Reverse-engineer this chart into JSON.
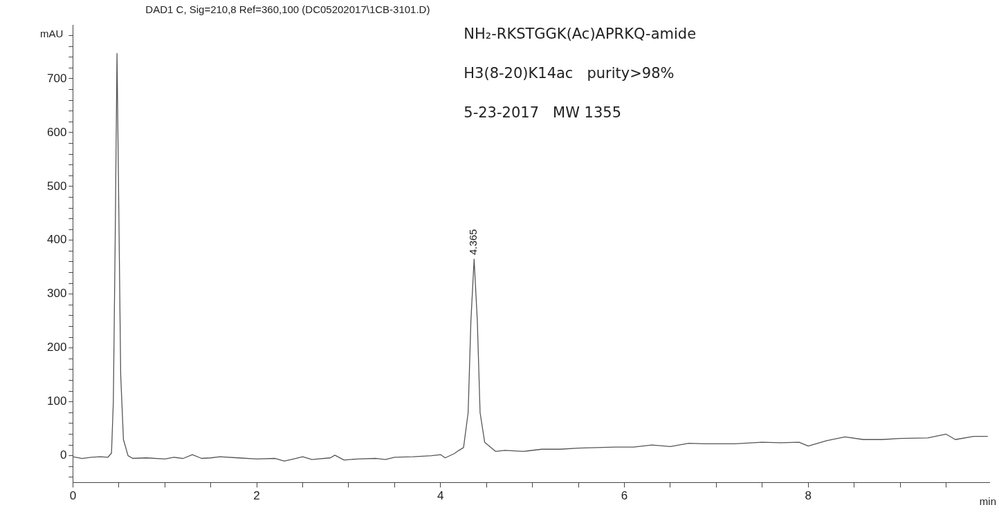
{
  "chart_data": {
    "type": "line",
    "title": "DAD1 C, Sig=210,8 Ref=360,100 (DC05202017\\1CB-3101.D)",
    "xlabel": "min",
    "ylabel": "mAU",
    "x": [
      0,
      0.1,
      0.2,
      0.3,
      0.38,
      0.42,
      0.44,
      0.46,
      0.48,
      0.5,
      0.52,
      0.55,
      0.6,
      0.65,
      0.8,
      1.0,
      1.1,
      1.2,
      1.3,
      1.4,
      1.5,
      1.6,
      1.8,
      2.0,
      2.2,
      2.3,
      2.4,
      2.5,
      2.6,
      2.8,
      2.85,
      2.95,
      3.1,
      3.3,
      3.4,
      3.5,
      3.7,
      3.9,
      4.0,
      4.05,
      4.15,
      4.2,
      4.25,
      4.3,
      4.33,
      4.365,
      4.4,
      4.43,
      4.48,
      4.55,
      4.6,
      4.7,
      4.9,
      5.1,
      5.3,
      5.5,
      5.7,
      5.9,
      6.1,
      6.3,
      6.5,
      6.7,
      6.9,
      7.2,
      7.5,
      7.7,
      7.9,
      8.0,
      8.2,
      8.4,
      8.6,
      8.8,
      9.0,
      9.3,
      9.5,
      9.6,
      9.8,
      9.95
    ],
    "series": [
      {
        "color": "#555555",
        "values": [
          -2,
          -5,
          -3,
          -2,
          -3,
          5,
          100,
          400,
          747,
          450,
          150,
          30,
          0,
          -5,
          -4,
          -6,
          -3,
          -5,
          2,
          -5,
          -4,
          -2,
          -4,
          -6,
          -5,
          -10,
          -6,
          -2,
          -7,
          -4,
          1,
          -8,
          -6,
          -5,
          -7,
          -3,
          -2,
          0,
          2,
          -4,
          4,
          10,
          15,
          80,
          250,
          365,
          250,
          80,
          25,
          15,
          8,
          10,
          8,
          12,
          12,
          14,
          15,
          16,
          16,
          20,
          17,
          23,
          22,
          22,
          25,
          24,
          25,
          18,
          28,
          35,
          30,
          30,
          32,
          33,
          40,
          30,
          36,
          36
        ]
      }
    ],
    "xlim": [
      0,
      9.97
    ],
    "ylim": [
      -50,
      800
    ],
    "xticks": [
      0,
      {
        "value": 0.5,
        "label": null
      },
      {
        "value": 1,
        "label": null
      },
      {
        "value": 1.5,
        "label": null
      },
      2,
      {
        "value": 2.5,
        "label": null
      },
      {
        "value": 3,
        "label": null
      },
      {
        "value": 3.5,
        "label": null
      },
      4,
      {
        "value": 4.5,
        "label": null
      },
      {
        "value": 5,
        "label": null
      },
      {
        "value": 5.5,
        "label": null
      },
      6,
      {
        "value": 6.5,
        "label": null
      },
      {
        "value": 7,
        "label": null
      },
      {
        "value": 7.5,
        "label": null
      },
      8,
      {
        "value": 8.5,
        "label": null
      },
      {
        "value": 9,
        "label": null
      },
      {
        "value": 9.5,
        "label": null
      }
    ],
    "yticks": [
      {
        "value": -40,
        "label": null
      },
      {
        "value": -20,
        "label": null
      },
      0,
      {
        "value": 20,
        "label": null
      },
      {
        "value": 40,
        "label": null
      },
      {
        "value": 60,
        "label": null
      },
      {
        "value": 80,
        "label": null
      },
      100,
      {
        "value": 120,
        "label": null
      },
      {
        "value": 140,
        "label": null
      },
      {
        "value": 160,
        "label": null
      },
      {
        "value": 180,
        "label": null
      },
      200,
      {
        "value": 220,
        "label": null
      },
      {
        "value": 240,
        "label": null
      },
      {
        "value": 260,
        "label": null
      },
      {
        "value": 280,
        "label": null
      },
      300,
      {
        "value": 320,
        "label": null
      },
      {
        "value": 340,
        "label": null
      },
      {
        "value": 360,
        "label": null
      },
      {
        "value": 380,
        "label": null
      },
      400,
      {
        "value": 420,
        "label": null
      },
      {
        "value": 440,
        "label": null
      },
      {
        "value": 460,
        "label": null
      },
      {
        "value": 480,
        "label": null
      },
      500,
      {
        "value": 520,
        "label": null
      },
      {
        "value": 540,
        "label": null
      },
      {
        "value": 560,
        "label": null
      },
      {
        "value": 580,
        "label": null
      },
      600,
      {
        "value": 620,
        "label": null
      },
      {
        "value": 640,
        "label": null
      },
      {
        "value": 660,
        "label": null
      },
      {
        "value": 680,
        "label": null
      },
      700,
      {
        "value": 720,
        "label": null
      },
      {
        "value": 740,
        "label": null
      },
      {
        "value": 760,
        "label": null
      },
      {
        "value": 780,
        "label": null
      }
    ],
    "grid": false,
    "marker": "none",
    "line_style": "solid",
    "legend": false,
    "annotations": [
      {
        "text": "4.365",
        "x": 4.365,
        "y": 365
      },
      "NH₂-RKSTGGK(Ac)APRKQ-amide",
      "H3(8-20)K14ac   purity>98%",
      "5-23-2017   MW 1355"
    ]
  }
}
